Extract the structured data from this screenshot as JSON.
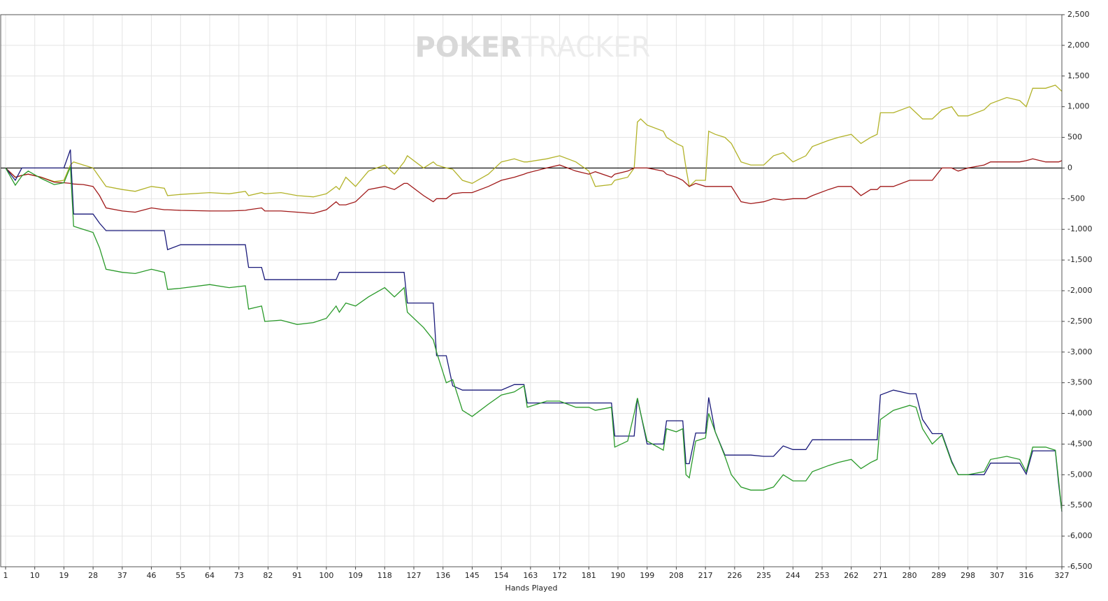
{
  "chart_data": {
    "type": "line",
    "watermark": [
      "POKER",
      "TRACKER"
    ],
    "x_label": "Hands Played",
    "xlim": [
      1,
      327
    ],
    "xticks": [
      1,
      10,
      19,
      28,
      37,
      46,
      55,
      64,
      73,
      82,
      91,
      100,
      109,
      118,
      127,
      136,
      145,
      154,
      163,
      172,
      181,
      190,
      199,
      208,
      217,
      226,
      235,
      244,
      253,
      262,
      271,
      280,
      289,
      298,
      307,
      316,
      327
    ],
    "ylim": [
      -6500,
      2500
    ],
    "yticks": [
      {
        "value": 2500,
        "label": "2,500"
      },
      {
        "value": 2000,
        "label": "2,000"
      },
      {
        "value": 1500,
        "label": "1,500"
      },
      {
        "value": 1000,
        "label": "1,000"
      },
      500,
      0,
      -500,
      {
        "value": -1000,
        "label": "-1,000"
      },
      {
        "value": -1500,
        "label": "-1,500"
      },
      {
        "value": -2000,
        "label": "-2,000"
      },
      {
        "value": -2500,
        "label": "-2,500"
      },
      {
        "value": -3000,
        "label": "-3,000"
      },
      {
        "value": -3500,
        "label": "-3,500"
      },
      {
        "value": -4000,
        "label": "-4,000"
      },
      {
        "value": -4500,
        "label": "-4,500"
      },
      {
        "value": -5000,
        "label": "-5,000"
      },
      {
        "value": -5500,
        "label": "-5,500"
      },
      {
        "value": -6000,
        "label": "-6,000"
      },
      {
        "value": -6500,
        "label": "-6,500"
      }
    ],
    "grid": true,
    "zero_line": true,
    "x": [
      1,
      4,
      6,
      8,
      12,
      16,
      19,
      21,
      22,
      25,
      28,
      30,
      32,
      37,
      41,
      46,
      50,
      51,
      55,
      64,
      70,
      75,
      76,
      80,
      81,
      86,
      91,
      96,
      100,
      103,
      104,
      106,
      109,
      113,
      118,
      121,
      124,
      125,
      130,
      133,
      134,
      137,
      139,
      142,
      145,
      150,
      154,
      158,
      161,
      162,
      168,
      172,
      177,
      181,
      183,
      188,
      189,
      193,
      195,
      196,
      197,
      199,
      204,
      205,
      208,
      210,
      211,
      212,
      214,
      217,
      218,
      220,
      223,
      225,
      228,
      231,
      235,
      238,
      241,
      244,
      248,
      250,
      255,
      258,
      262,
      265,
      268,
      270,
      271,
      275,
      280,
      282,
      284,
      287,
      290,
      293,
      295,
      298,
      303,
      305,
      310,
      314,
      316,
      318,
      322,
      325,
      326,
      327
    ],
    "series": [
      {
        "color": "#b2b228",
        "values": [
          0,
          -150,
          -120,
          -100,
          -150,
          -220,
          -200,
          50,
          100,
          50,
          0,
          -150,
          -300,
          -350,
          -380,
          -300,
          -330,
          -450,
          -430,
          -400,
          -420,
          -380,
          -450,
          -400,
          -420,
          -400,
          -450,
          -470,
          -420,
          -300,
          -350,
          -150,
          -300,
          -50,
          50,
          -100,
          100,
          200,
          0,
          100,
          50,
          0,
          -20,
          -200,
          -250,
          -100,
          100,
          150,
          100,
          100,
          150,
          200,
          100,
          -50,
          -300,
          -270,
          -200,
          -150,
          0,
          750,
          800,
          700,
          600,
          500,
          400,
          350,
          0,
          -300,
          -200,
          -200,
          600,
          550,
          500,
          400,
          100,
          50,
          50,
          200,
          250,
          100,
          200,
          350,
          450,
          500,
          550,
          400,
          500,
          550,
          900,
          900,
          1000,
          900,
          800,
          800,
          950,
          1000,
          850,
          850,
          950,
          1050,
          1150,
          1100,
          1000,
          1300,
          1300,
          1350,
          1300,
          1250
        ]
      },
      {
        "color": "#a01818",
        "values": [
          0,
          -150,
          -120,
          -100,
          -150,
          -230,
          -240,
          -250,
          -260,
          -270,
          -300,
          -450,
          -650,
          -700,
          -720,
          -650,
          -680,
          -680,
          -690,
          -700,
          -700,
          -690,
          -680,
          -650,
          -700,
          -700,
          -720,
          -740,
          -680,
          -550,
          -600,
          -600,
          -550,
          -350,
          -300,
          -350,
          -250,
          -250,
          -450,
          -550,
          -500,
          -500,
          -420,
          -400,
          -400,
          -300,
          -200,
          -150,
          -100,
          -80,
          0,
          50,
          -50,
          -100,
          -60,
          -150,
          -100,
          -50,
          0,
          0,
          0,
          0,
          -50,
          -100,
          -150,
          -200,
          -250,
          -300,
          -250,
          -300,
          -300,
          -300,
          -300,
          -300,
          -550,
          -580,
          -550,
          -500,
          -520,
          -500,
          -500,
          -450,
          -350,
          -300,
          -300,
          -450,
          -350,
          -350,
          -300,
          -300,
          -200,
          -200,
          -200,
          -200,
          0,
          0,
          -50,
          0,
          50,
          100,
          100,
          100,
          120,
          150,
          100,
          100,
          100,
          120
        ]
      },
      {
        "color": "#1a1a7a",
        "values": [
          0,
          -200,
          0,
          0,
          0,
          0,
          0,
          300,
          -750,
          -750,
          -750,
          -900,
          -1020,
          -1020,
          -1020,
          -1020,
          -1020,
          -1330,
          -1250,
          -1250,
          -1250,
          -1250,
          -1620,
          -1620,
          -1820,
          -1820,
          -1820,
          -1820,
          -1820,
          -1820,
          -1700,
          -1700,
          -1700,
          -1700,
          -1700,
          -1700,
          -1700,
          -2200,
          -2200,
          -2200,
          -3060,
          -3060,
          -3550,
          -3620,
          -3620,
          -3620,
          -3620,
          -3530,
          -3530,
          -3830,
          -3830,
          -3830,
          -3830,
          -3830,
          -3830,
          -3830,
          -4370,
          -4370,
          -4370,
          -3750,
          -4000,
          -4500,
          -4500,
          -4120,
          -4120,
          -4120,
          -4820,
          -4820,
          -4320,
          -4320,
          -3740,
          -4300,
          -4680,
          -4680,
          -4680,
          -4680,
          -4700,
          -4700,
          -4530,
          -4590,
          -4590,
          -4430,
          -4430,
          -4430,
          -4430,
          -4430,
          -4430,
          -4430,
          -3700,
          -3620,
          -3680,
          -3680,
          -4100,
          -4330,
          -4330,
          -4780,
          -5000,
          -5000,
          -5000,
          -4810,
          -4810,
          -4810,
          -4990,
          -4610,
          -4610,
          -4610,
          -5150,
          -5600
        ]
      },
      {
        "color": "#2a9a2a",
        "values": [
          0,
          -280,
          -130,
          -50,
          -170,
          -270,
          -240,
          20,
          -950,
          -1000,
          -1050,
          -1300,
          -1650,
          -1700,
          -1720,
          -1650,
          -1700,
          -1980,
          -1960,
          -1900,
          -1950,
          -1920,
          -2300,
          -2250,
          -2500,
          -2480,
          -2550,
          -2520,
          -2450,
          -2250,
          -2350,
          -2200,
          -2250,
          -2100,
          -1950,
          -2100,
          -1950,
          -2350,
          -2600,
          -2800,
          -3000,
          -3500,
          -3450,
          -3950,
          -4050,
          -3850,
          -3700,
          -3650,
          -3550,
          -3900,
          -3800,
          -3800,
          -3900,
          -3900,
          -3950,
          -3900,
          -4550,
          -4450,
          -4000,
          -3750,
          -4000,
          -4450,
          -4600,
          -4250,
          -4300,
          -4250,
          -5000,
          -5050,
          -4450,
          -4400,
          -4000,
          -4300,
          -4700,
          -5000,
          -5200,
          -5250,
          -5250,
          -5200,
          -5000,
          -5100,
          -5100,
          -4950,
          -4850,
          -4800,
          -4750,
          -4900,
          -4800,
          -4750,
          -4100,
          -3950,
          -3870,
          -3900,
          -4250,
          -4500,
          -4350,
          -4800,
          -5000,
          -5000,
          -4950,
          -4750,
          -4700,
          -4750,
          -4950,
          -4550,
          -4550,
          -4600,
          -5100,
          -5600
        ]
      }
    ]
  }
}
